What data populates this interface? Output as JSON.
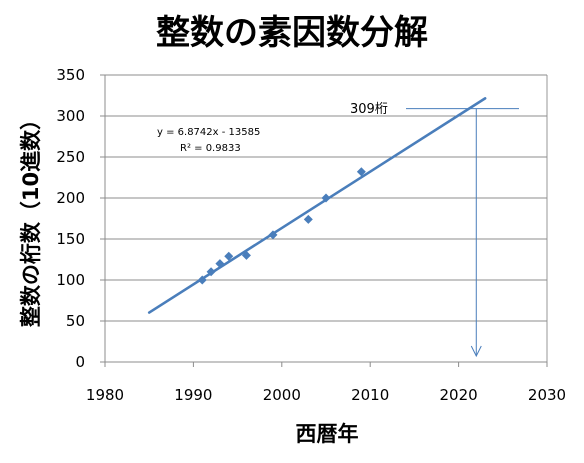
{
  "chart_data": {
    "type": "scatter",
    "title": "整数の素因数分解",
    "xlabel": "西暦年",
    "ylabel": "整数の桁数（10進数）",
    "xlim": [
      1980,
      2030
    ],
    "ylim": [
      0,
      350
    ],
    "xticks": [
      "1980",
      "1990",
      "2000",
      "2010",
      "2020",
      "2030"
    ],
    "yticks": [
      "0",
      "50",
      "100",
      "150",
      "200",
      "250",
      "300",
      "350"
    ],
    "grid": true,
    "legend": "none",
    "series": [
      {
        "points": [
          {
            "x": 1991,
            "y": 100
          },
          {
            "x": 1992,
            "y": 110
          },
          {
            "x": 1993,
            "y": 120
          },
          {
            "x": 1994,
            "y": 129
          },
          {
            "x": 1996,
            "y": 130
          },
          {
            "x": 1999,
            "y": 155
          },
          {
            "x": 2003,
            "y": 174
          },
          {
            "x": 2005,
            "y": 200
          },
          {
            "x": 2009,
            "y": 232
          }
        ],
        "color": "#4A7EBB"
      }
    ],
    "trendline": {
      "type": "linear",
      "slope": 6.8742,
      "intercept": -13585,
      "x_range": [
        1985,
        2023
      ],
      "equation": "y = 6.8742x - 13585",
      "r2": "R² = 0.9833",
      "color": "#4A7EBB"
    },
    "annotation": {
      "text": "309桁",
      "x": 2022,
      "y": 309
    }
  }
}
